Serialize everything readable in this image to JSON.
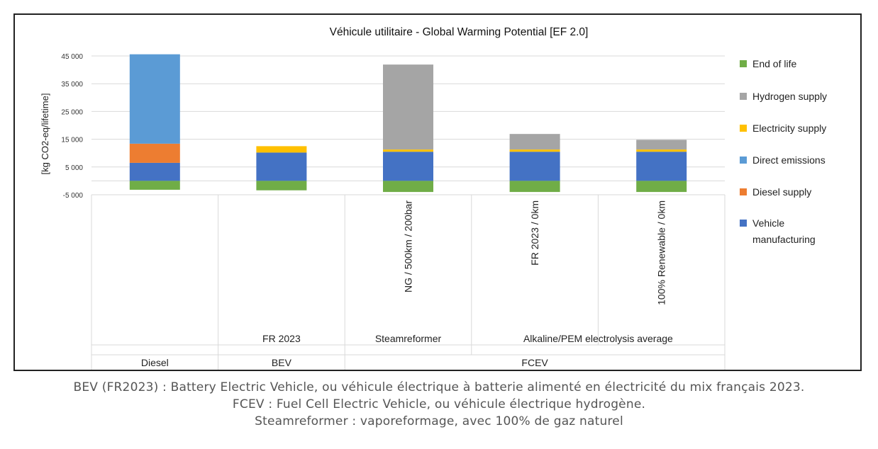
{
  "chart_data": {
    "type": "bar",
    "stacked": true,
    "title": "Véhicule utilitaire - Global Warming Potential [EF 2.0]",
    "ylabel": "[kg CO2-eq/lifetime]",
    "ylim": [
      -5000,
      45000
    ],
    "yticks": [
      -5000,
      5000,
      15000,
      25000,
      35000,
      45000
    ],
    "ytick_labels": [
      "-5 000",
      "5 000",
      "15 000",
      "25 000",
      "35 000",
      "45 000"
    ],
    "grid": true,
    "legend_position": "right",
    "categories": [
      {
        "label": "",
        "subgroup": "",
        "group": "Diesel"
      },
      {
        "label": "",
        "subgroup": "FR 2023",
        "group": "BEV"
      },
      {
        "label": "NG / 500km / 200bar",
        "subgroup": "Steamreformer",
        "group": "FCEV"
      },
      {
        "label": "FR 2023 / 0km",
        "subgroup": "Alkaline/PEM electrolysis average",
        "group": "FCEV"
      },
      {
        "label": "100% Renewable / 0km",
        "subgroup": "Alkaline/PEM electrolysis average",
        "group": "FCEV"
      }
    ],
    "subgroups": [
      {
        "label": "FR 2023"
      },
      {
        "label": "Steamreformer"
      },
      {
        "label": "Alkaline/PEM electrolysis average"
      }
    ],
    "groups": [
      {
        "label": "Diesel"
      },
      {
        "label": "BEV"
      },
      {
        "label": "FCEV"
      }
    ],
    "series": [
      {
        "name": "Vehicle manufacturing",
        "color": "#4472C4",
        "values": [
          6500,
          10200,
          10500,
          10500,
          10500
        ]
      },
      {
        "name": "Diesel supply",
        "color": "#ED7D31",
        "values": [
          6900,
          0,
          0,
          0,
          0
        ]
      },
      {
        "name": "Direct emissions",
        "color": "#5B9BD5",
        "values": [
          32200,
          0,
          0,
          0,
          0
        ]
      },
      {
        "name": "Electricity supply",
        "color": "#FFC000",
        "values": [
          0,
          2300,
          800,
          800,
          800
        ]
      },
      {
        "name": "Hydrogen supply",
        "color": "#A5A5A5",
        "values": [
          0,
          0,
          30600,
          5600,
          3500
        ]
      },
      {
        "name": "End of life",
        "color": "#70AD47",
        "values": [
          -3200,
          -3400,
          -4000,
          -4000,
          -4000
        ]
      }
    ],
    "legend_order": [
      "End of life",
      "Hydrogen supply",
      "Electricity supply",
      "Direct emissions",
      "Diesel supply",
      "Vehicle manufacturing"
    ]
  },
  "captions": [
    "BEV (FR2023) : Battery Electric Vehicle, ou véhicule électrique à batterie alimenté en électricité du mix français 2023.",
    "FCEV : Fuel Cell Electric Vehicle, ou véhicule électrique hydrogène.",
    "Steamreformer : vaporeformage, avec 100% de gaz naturel"
  ]
}
